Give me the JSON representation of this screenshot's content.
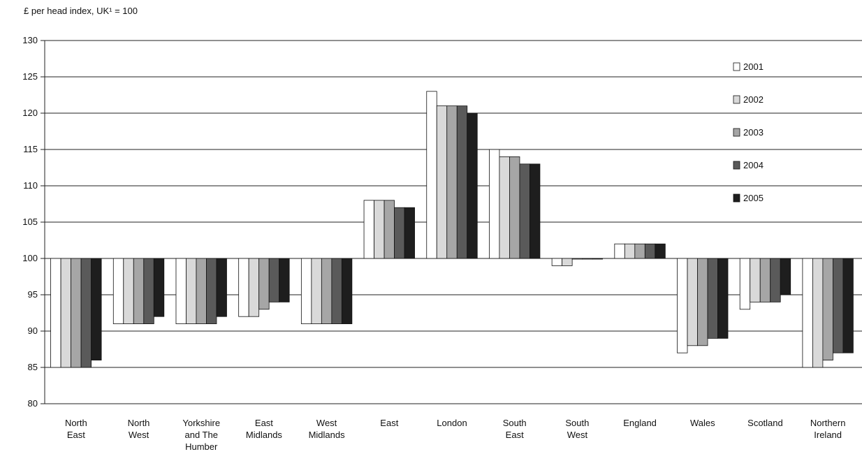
{
  "chart_data": {
    "type": "bar",
    "y_unit_label": "£ per head index, UK¹ = 100",
    "ylim": [
      80,
      130
    ],
    "yticks": [
      "80",
      "85",
      "90",
      "95",
      "100",
      "105",
      "110",
      "115",
      "120",
      "125",
      "130"
    ],
    "baseline": 100,
    "grid": true,
    "legend_position": "right",
    "categories": [
      [
        "North",
        "East"
      ],
      [
        "North",
        "West"
      ],
      [
        "Yorkshire",
        "and The",
        "Humber"
      ],
      [
        "East",
        "Midlands"
      ],
      [
        "West",
        "Midlands"
      ],
      [
        "East"
      ],
      [
        "London"
      ],
      [
        "South",
        "East"
      ],
      [
        "South",
        "West"
      ],
      [
        "England"
      ],
      [
        "Wales"
      ],
      [
        "Scotland"
      ],
      [
        "Northern",
        "Ireland"
      ]
    ],
    "series": [
      {
        "name": "2001",
        "color": "#ffffff",
        "values": [
          85,
          91,
          91,
          92,
          91,
          108,
          123,
          115,
          99,
          102,
          87,
          93,
          85
        ]
      },
      {
        "name": "2002",
        "color": "#d9d9d9",
        "values": [
          85,
          91,
          91,
          92,
          91,
          108,
          121,
          114,
          99,
          102,
          88,
          94,
          85
        ]
      },
      {
        "name": "2003",
        "color": "#a6a6a6",
        "values": [
          85,
          91,
          91,
          93,
          91,
          108,
          121,
          114,
          100,
          102,
          88,
          94,
          86
        ]
      },
      {
        "name": "2004",
        "color": "#5a5a5a",
        "values": [
          85,
          91,
          91,
          94,
          91,
          107,
          121,
          113,
          100,
          102,
          89,
          94,
          87
        ]
      },
      {
        "name": "2005",
        "color": "#1e1e1e",
        "values": [
          86,
          92,
          92,
          94,
          91,
          107,
          120,
          113,
          100,
          102,
          89,
          95,
          87
        ]
      }
    ]
  }
}
